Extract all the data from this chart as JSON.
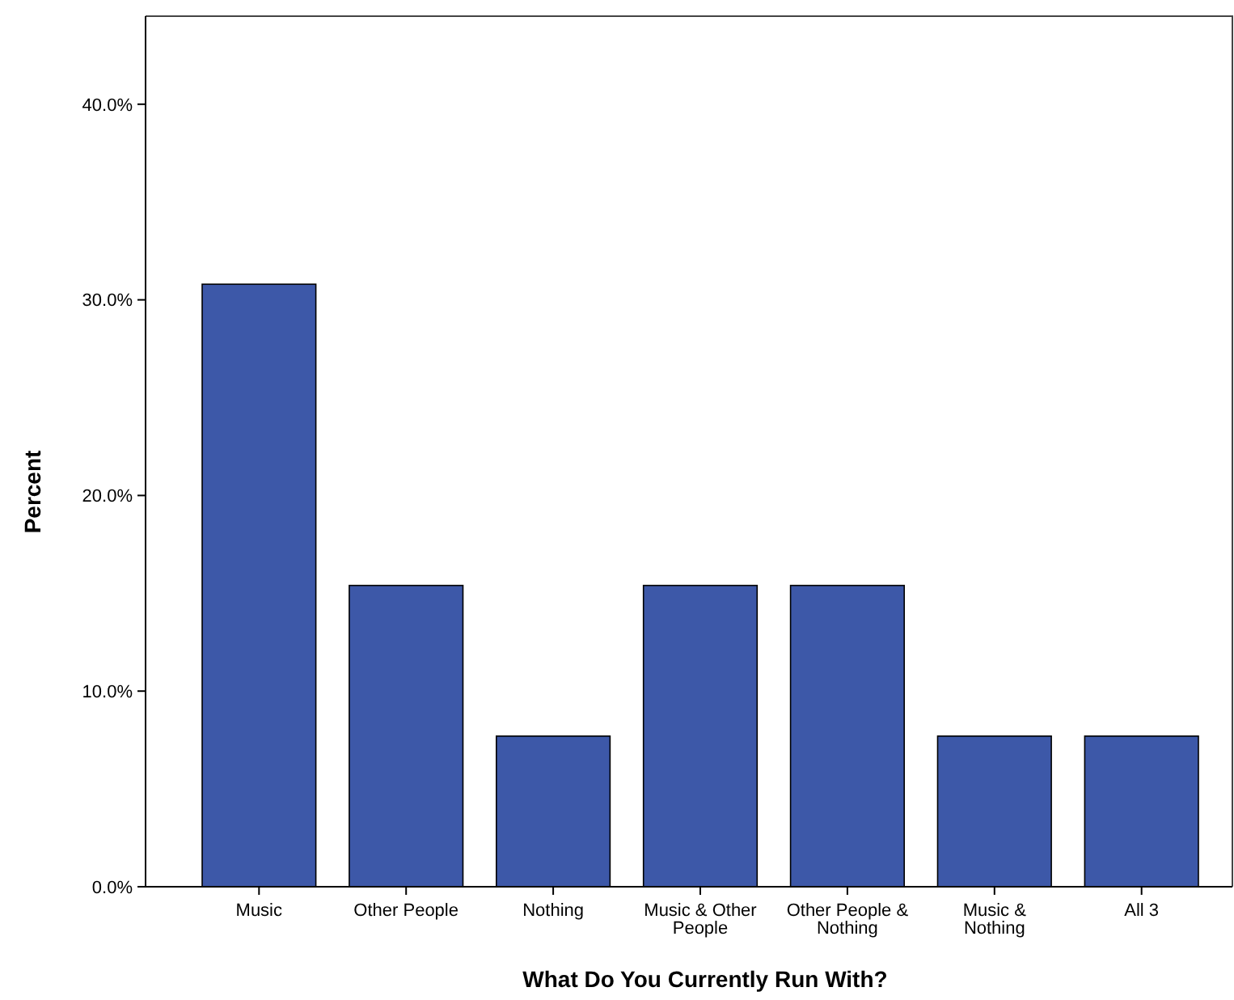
{
  "chart_data": {
    "type": "bar",
    "xlabel": "What Do You Currently Run With?",
    "ylabel": "Percent",
    "categories": [
      "Music",
      "Other People",
      "Nothing",
      "Music & Other People",
      "Other People & Nothing",
      "Music & Nothing",
      "All 3"
    ],
    "values": [
      30.8,
      15.4,
      7.7,
      15.4,
      15.4,
      7.7,
      7.7
    ],
    "color": "#3d58a8",
    "ylim": [
      0,
      44.5
    ],
    "yticks": [
      {
        "value": 0,
        "label": "0.0%"
      },
      {
        "value": 10,
        "label": "10.0%"
      },
      {
        "value": 20,
        "label": "20.0%"
      },
      {
        "value": 30,
        "label": "30.0%"
      },
      {
        "value": 40,
        "label": "40.0%"
      }
    ],
    "grid": false
  }
}
